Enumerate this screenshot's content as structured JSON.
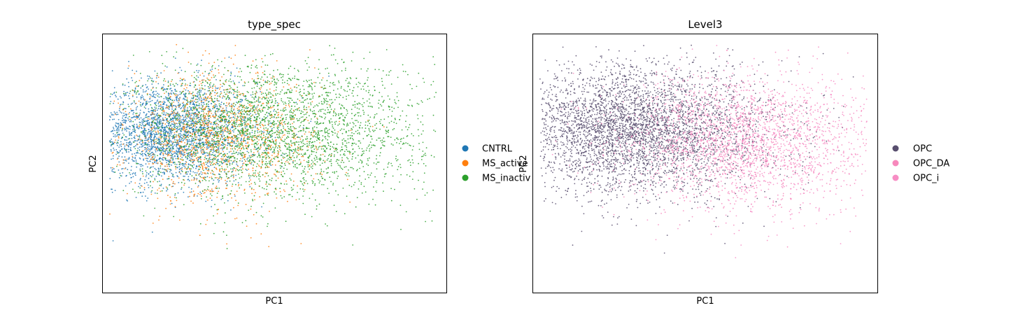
{
  "colors": {
    "CNTRL": "#1f77b4",
    "MS_active": "#ff7f0e",
    "MS_inactive": "#2ca02c",
    "OPC": "#584e6e",
    "OPC_DA": "#f788bc",
    "OPC_i": "#f78dc4"
  },
  "chart_data": [
    {
      "type": "scatter",
      "title": "type_spec",
      "xlabel": "PC1",
      "ylabel": "PC2",
      "xlim": [
        0,
        100
      ],
      "ylim": [
        0,
        100
      ],
      "grid": false,
      "legend": {
        "placement": "right-outside",
        "entries": [
          "CNTRL",
          "MS_active",
          "MS_inactive"
        ]
      },
      "legend_visible_labels": [
        "CNTRL",
        "MS_active",
        "MS_inactiv"
      ],
      "series": [
        {
          "name": "CNTRL",
          "n": 2600,
          "center": [
            20,
            62
          ],
          "spread": [
            11,
            10
          ]
        },
        {
          "name": "MS_active",
          "n": 1400,
          "center": [
            33,
            60
          ],
          "spread": [
            13,
            12
          ]
        },
        {
          "name": "MS_inactive",
          "n": 3000,
          "center": [
            50,
            63
          ],
          "spread": [
            20,
            13
          ]
        }
      ]
    },
    {
      "type": "scatter",
      "title": "Level3",
      "xlabel": "PC1",
      "ylabel": "PC2",
      "xlim": [
        0,
        100
      ],
      "ylim": [
        0,
        100
      ],
      "grid": false,
      "legend": {
        "placement": "right-outside",
        "entries": [
          "OPC",
          "OPC_DA",
          "OPC_i"
        ]
      },
      "legend_visible_labels": [
        "OPC",
        "OPC_DA",
        "OPC_i"
      ],
      "series": [
        {
          "name": "OPC",
          "n": 4200,
          "center": [
            30,
            63
          ],
          "spread": [
            17,
            12
          ]
        },
        {
          "name": "OPC_DA",
          "n": 900,
          "center": [
            58,
            58
          ],
          "spread": [
            18,
            13
          ]
        },
        {
          "name": "OPC_i",
          "n": 1600,
          "center": [
            65,
            58
          ],
          "spread": [
            16,
            13
          ]
        }
      ]
    }
  ]
}
